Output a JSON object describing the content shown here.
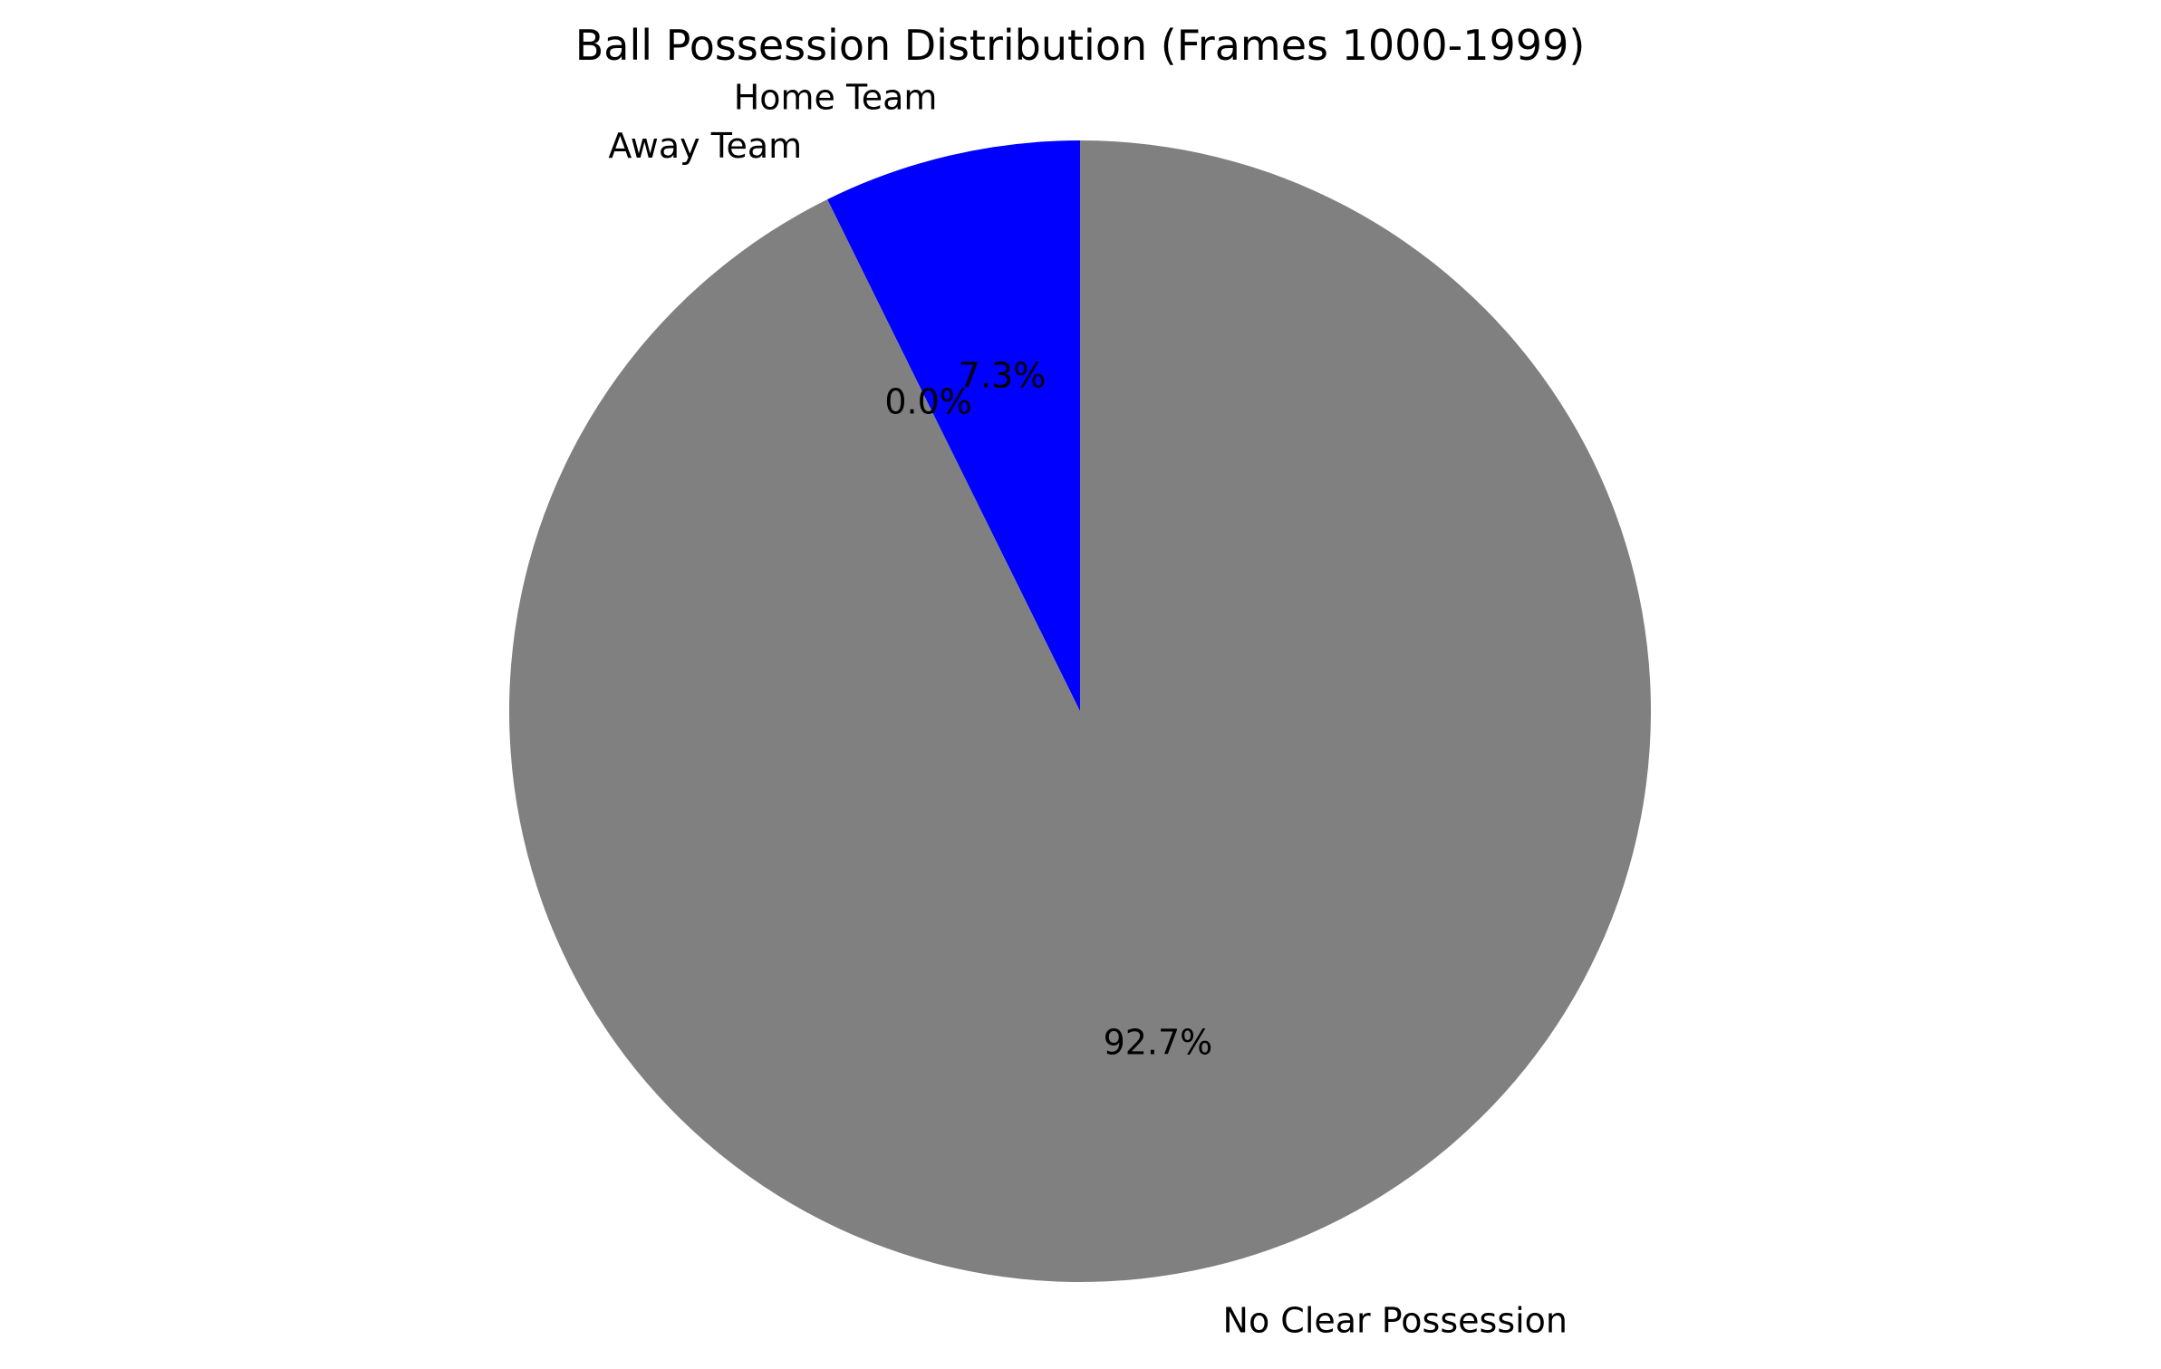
{
  "chart_data": {
    "type": "pie",
    "title": "Ball Possession Distribution (Frames 1000-1999)",
    "slices": [
      {
        "label": "Home Team",
        "value": 7.3,
        "pct_label": "7.3%",
        "color": "#0000ff"
      },
      {
        "label": "Away Team",
        "value": 0.0,
        "pct_label": "0.0%",
        "color": "#ff0000"
      },
      {
        "label": "No Clear Possession",
        "value": 92.7,
        "pct_label": "92.7%",
        "color": "#808080"
      }
    ],
    "start_angle_deg": 90,
    "direction": "counterclockwise",
    "legend": "none"
  }
}
